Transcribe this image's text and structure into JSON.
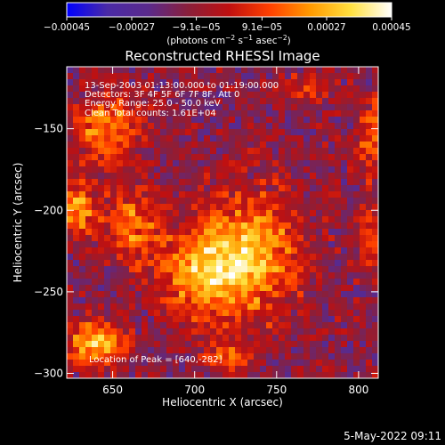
{
  "chart_data": {
    "type": "heatmap",
    "title": "Reconstructed RHESSI Image",
    "info_lines": [
      "13-Sep-2003 01:13:00.000 to 01:19:00.000",
      "Detectors: 3F 4F 5F 6F 7F 8F, Att 0",
      "Energy Range: 25.0 - 50.0 keV",
      "Clean    Total counts: 1.61E+04"
    ],
    "peak_label": "Location of Peak = [640,-282]",
    "peak_location": [
      640,
      -282
    ],
    "xlabel": "Heliocentric X (arcsec)",
    "ylabel": "Heliocentric Y (arcsec)",
    "xlim": [
      622,
      812
    ],
    "ylim": [
      -303,
      -112
    ],
    "x_ticks": [
      650,
      700,
      750,
      800
    ],
    "y_ticks": [
      -150,
      -200,
      -250,
      -300
    ],
    "x_tick_labels": [
      "650",
      "700",
      "750",
      "800"
    ],
    "y_tick_labels": [
      "−150",
      "−200",
      "−250",
      "−300"
    ],
    "colorbar": {
      "min": -0.00045,
      "max": 0.00045,
      "tick_values": [
        -0.00045,
        -0.00027,
        -9.1e-05,
        9.1e-05,
        0.00027,
        0.00045
      ],
      "tick_labels": [
        "−0.00045",
        "−0.00027",
        "−9.1e−05",
        "9.1e−05",
        "0.00027",
        "0.00045"
      ],
      "unit_text": "(photons cm",
      "unit_sup1": "−2",
      "unit_mid": " s",
      "unit_sup2": "−1",
      "unit_end": " asec",
      "unit_sup3": "−2",
      "unit_close": ")"
    },
    "colormap": [
      "#0000ff",
      "#4a2aa6",
      "#5a2a8c",
      "#8a1f3a",
      "#c01010",
      "#ff4000",
      "#ff9a00",
      "#ffe040",
      "#ffffff"
    ],
    "sources": [
      {
        "x": 735,
        "y": -228,
        "sx": 20,
        "sy": 26,
        "amp": 0.0004
      },
      {
        "x": 702,
        "y": -238,
        "sx": 16,
        "sy": 20,
        "amp": 0.00036
      },
      {
        "x": 662,
        "y": -210,
        "sx": 12,
        "sy": 16,
        "amp": 0.00028
      },
      {
        "x": 647,
        "y": -150,
        "sx": 15,
        "sy": 14,
        "amp": 0.00032
      },
      {
        "x": 628,
        "y": -200,
        "sx": 8,
        "sy": 12,
        "amp": 0.00036
      },
      {
        "x": 640,
        "y": -282,
        "sx": 12,
        "sy": 9,
        "amp": 0.00045
      },
      {
        "x": 720,
        "y": -290,
        "sx": 10,
        "sy": 6,
        "amp": 0.00022
      },
      {
        "x": 808,
        "y": -155,
        "sx": 6,
        "sy": 16,
        "amp": 0.00026
      },
      {
        "x": 806,
        "y": -215,
        "sx": 6,
        "sy": 14,
        "amp": 0.00018
      },
      {
        "x": 768,
        "y": -125,
        "sx": 10,
        "sy": 7,
        "amp": 0.0002
      }
    ],
    "background_level": -0.00012,
    "grid": false
  },
  "footer": {
    "timestamp": "5-May-2022 09:11"
  }
}
